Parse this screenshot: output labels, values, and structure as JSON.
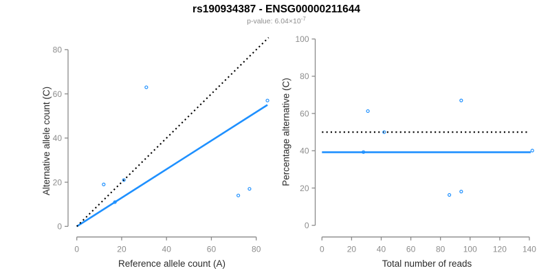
{
  "header": {
    "title": "rs190934387 - ENSG00000211644",
    "subtitle_base": "p-value: 6.04×10",
    "subtitle_exp": "-7",
    "subtitle_full": "p-value: 6.04×10⁻⁷"
  },
  "colors": {
    "accent_blue": "#1e90ff",
    "identity_line_black": "#000000",
    "axis_gray": "#8a8a8a",
    "tick_label_gray": "#8c8c8c",
    "axis_title_dark": "#2b2b2b",
    "subtitle_gray": "#8e8e8e",
    "background": "#ffffff"
  },
  "chart_data": [
    {
      "type": "scatter",
      "panel": "allele-counts",
      "xlabel": "Reference allele count (A)",
      "ylabel": "Alternative allele count (C)",
      "xlim": [
        0,
        88
      ],
      "ylim": [
        0,
        88
      ],
      "x_ticks": [
        0,
        20,
        40,
        60,
        80
      ],
      "y_ticks": [
        0,
        20,
        40,
        60,
        80
      ],
      "grid": false,
      "legend": null,
      "points": [
        [
          12,
          19
        ],
        [
          17,
          11
        ],
        [
          21,
          21
        ],
        [
          31,
          63
        ],
        [
          72,
          14
        ],
        [
          77,
          17
        ],
        [
          85,
          57
        ]
      ],
      "lines": [
        {
          "name": "fit-line",
          "style": "solid",
          "color": "#1e90ff",
          "x1": 0,
          "y1": 0,
          "x2": 85,
          "y2": 55
        },
        {
          "name": "identity-line",
          "style": "dotted",
          "color": "#000000",
          "x1": 0,
          "y1": 0,
          "x2": 85.5,
          "y2": 85.5
        }
      ]
    },
    {
      "type": "scatter",
      "panel": "percentage-alternative",
      "xlabel": "Total number of reads",
      "ylabel": "Percentage alternative (C)",
      "xlim": [
        0,
        145
      ],
      "ylim": [
        0,
        100
      ],
      "x_ticks": [
        0,
        20,
        40,
        60,
        80,
        100,
        120,
        140
      ],
      "y_ticks": [
        0,
        20,
        40,
        60,
        80,
        100
      ],
      "grid": false,
      "legend": null,
      "points": [
        [
          28,
          39.3
        ],
        [
          31,
          61.3
        ],
        [
          42,
          50
        ],
        [
          86,
          16.3
        ],
        [
          94,
          18.1
        ],
        [
          94,
          67
        ],
        [
          142,
          40.1
        ]
      ],
      "lines": [
        {
          "name": "mean-line",
          "style": "solid",
          "color": "#1e90ff",
          "x1": 0,
          "y1": 39.2,
          "x2": 141,
          "y2": 39.2
        },
        {
          "name": "null-line",
          "style": "dotted",
          "color": "#000000",
          "x1": 0,
          "y1": 50,
          "x2": 138.5,
          "y2": 50
        }
      ]
    }
  ]
}
